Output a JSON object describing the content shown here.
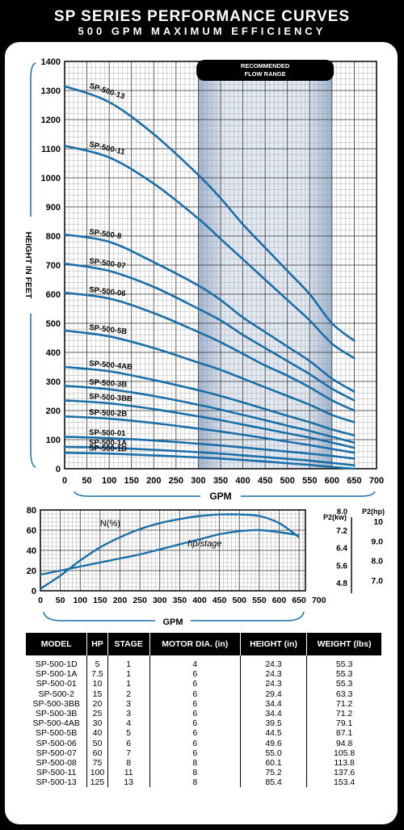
{
  "header": {
    "title": "SP SERIES PERFORMANCE CURVES",
    "subtitle": "500 GPM MAXIMUM EFFICIENCY"
  },
  "chart_data": [
    {
      "type": "line",
      "ylabel": "HEIGHT IN FEET",
      "xlabel": "GPM",
      "xlim": [
        0,
        700
      ],
      "ylim": [
        0,
        1400
      ],
      "xticks": [
        0,
        50,
        100,
        150,
        200,
        250,
        300,
        350,
        400,
        450,
        500,
        550,
        600,
        650,
        700
      ],
      "yticks": [
        0,
        100,
        200,
        300,
        400,
        500,
        600,
        700,
        800,
        900,
        1000,
        1100,
        1200,
        1300,
        1400
      ],
      "grid": true,
      "recommended_flow_range": {
        "label": "RECOMMENDED FLOW RANGE",
        "from": 300,
        "to": 600
      },
      "series": [
        {
          "name": "SP-500-13",
          "x": [
            0,
            100,
            200,
            300,
            350,
            400,
            450,
            500,
            550,
            600,
            650
          ],
          "y": [
            1315,
            1260,
            1150,
            1010,
            930,
            840,
            760,
            680,
            600,
            500,
            440
          ]
        },
        {
          "name": "SP-500-11",
          "x": [
            0,
            100,
            200,
            300,
            350,
            400,
            450,
            500,
            550,
            600,
            650
          ],
          "y": [
            1110,
            1070,
            980,
            860,
            790,
            720,
            650,
            580,
            510,
            430,
            380
          ]
        },
        {
          "name": "SP-500-8",
          "x": [
            0,
            100,
            200,
            300,
            350,
            400,
            450,
            500,
            550,
            600,
            650
          ],
          "y": [
            805,
            780,
            710,
            630,
            580,
            520,
            470,
            420,
            370,
            310,
            265
          ]
        },
        {
          "name": "SP-500-07",
          "x": [
            0,
            100,
            200,
            300,
            350,
            400,
            450,
            500,
            550,
            600,
            650
          ],
          "y": [
            705,
            680,
            625,
            550,
            510,
            460,
            415,
            370,
            325,
            275,
            235
          ]
        },
        {
          "name": "SP-500-06",
          "x": [
            0,
            100,
            200,
            300,
            350,
            400,
            450,
            500,
            550,
            600,
            650
          ],
          "y": [
            605,
            585,
            535,
            470,
            435,
            395,
            355,
            320,
            280,
            235,
            200
          ]
        },
        {
          "name": "SP-500-5B",
          "x": [
            0,
            100,
            200,
            300,
            350,
            400,
            450,
            500,
            550,
            600,
            650
          ],
          "y": [
            475,
            455,
            415,
            365,
            340,
            310,
            280,
            250,
            220,
            185,
            160
          ]
        },
        {
          "name": "SP-500-4AB",
          "x": [
            0,
            100,
            200,
            300,
            350,
            400,
            450,
            500,
            550,
            600,
            650
          ],
          "y": [
            350,
            335,
            305,
            270,
            250,
            228,
            205,
            182,
            160,
            135,
            115
          ]
        },
        {
          "name": "SP-500-3B",
          "x": [
            0,
            100,
            200,
            300,
            350,
            400,
            450,
            500,
            550,
            600,
            650
          ],
          "y": [
            285,
            273,
            250,
            220,
            203,
            185,
            167,
            148,
            130,
            110,
            90
          ]
        },
        {
          "name": "SP-500-3BB",
          "x": [
            0,
            100,
            200,
            300,
            350,
            400,
            450,
            500,
            550,
            600,
            650
          ],
          "y": [
            235,
            225,
            205,
            180,
            167,
            152,
            137,
            122,
            107,
            90,
            72
          ]
        },
        {
          "name": "SP-500-2B",
          "x": [
            0,
            100,
            200,
            300,
            350,
            400,
            450,
            500,
            550,
            600,
            650
          ],
          "y": [
            180,
            172,
            157,
            138,
            128,
            117,
            105,
            93,
            81,
            68,
            55
          ]
        },
        {
          "name": "SP-500-01",
          "x": [
            0,
            100,
            200,
            300,
            350,
            400,
            450,
            500,
            550,
            600,
            650
          ],
          "y": [
            110,
            105,
            97,
            86,
            80,
            73,
            66,
            59,
            52,
            44,
            35
          ]
        },
        {
          "name": "SP-500-1A",
          "x": [
            0,
            100,
            200,
            300,
            350,
            400,
            450,
            500,
            550,
            600,
            650
          ],
          "y": [
            75,
            72,
            65,
            57,
            52,
            46,
            40,
            34,
            28,
            20,
            12
          ]
        },
        {
          "name": "SP-500-1D",
          "x": [
            0,
            100,
            200,
            300,
            350,
            400,
            450,
            500,
            550,
            600,
            650
          ],
          "y": [
            55,
            52,
            46,
            39,
            35,
            30,
            25,
            19,
            13,
            6,
            0
          ]
        }
      ]
    },
    {
      "type": "line",
      "xlabel": "GPM",
      "xlim": [
        0,
        700
      ],
      "ylim": [
        0,
        80
      ],
      "xticks": [
        0,
        50,
        100,
        150,
        200,
        250,
        300,
        350,
        400,
        450,
        500,
        550,
        600,
        650,
        700
      ],
      "yticks": [
        0,
        20,
        40,
        60,
        80
      ],
      "right_axis_kw": {
        "label": "P2(kw)",
        "ticks": [
          "8.0",
          "7.2",
          "6.4",
          "5.6",
          "4.8"
        ]
      },
      "right_axis_hp": {
        "label": "P2(hp)",
        "ticks": [
          "10",
          "9.0",
          "8.0",
          "7.0"
        ]
      },
      "grid": true,
      "series": [
        {
          "name": "N(%)",
          "x": [
            0,
            50,
            100,
            150,
            200,
            250,
            300,
            350,
            400,
            450,
            500,
            550,
            600,
            650
          ],
          "y": [
            2,
            15,
            30,
            43,
            53,
            61,
            67,
            71,
            74,
            75.5,
            75.5,
            74,
            67,
            53
          ]
        },
        {
          "name": "hp/stage",
          "x": [
            0,
            50,
            100,
            150,
            200,
            250,
            300,
            350,
            400,
            450,
            500,
            550,
            600,
            650
          ],
          "y": [
            16,
            20,
            24,
            28,
            32,
            36,
            41,
            46,
            51,
            56,
            59,
            60,
            58,
            55
          ]
        }
      ]
    },
    {
      "type": "table",
      "columns": [
        "MODEL",
        "HP",
        "STAGE",
        "MOTOR DIA. (in)",
        "HEIGHT (in)",
        "WEIGHT (lbs)"
      ],
      "rows": [
        [
          "SP-500-1D",
          "5",
          "1",
          "4",
          "24.3",
          "55.3"
        ],
        [
          "SP-500-1A",
          "7.5",
          "1",
          "6",
          "24.3",
          "55.3"
        ],
        [
          "SP-500-01",
          "10",
          "1",
          "6",
          "24.3",
          "55.3"
        ],
        [
          "SP-500-2",
          "15",
          "2",
          "6",
          "29.4",
          "63.3"
        ],
        [
          "SP-500-3BB",
          "20",
          "3",
          "6",
          "34.4",
          "71.2"
        ],
        [
          "SP-500-3B",
          "25",
          "3",
          "6",
          "34.4",
          "71.2"
        ],
        [
          "SP-500-4AB",
          "30",
          "4",
          "6",
          "39.5",
          "79.1"
        ],
        [
          "SP-500-5B",
          "40",
          "5",
          "6",
          "44.5",
          "87.1"
        ],
        [
          "SP-500-06",
          "50",
          "6",
          "6",
          "49.6",
          "94.8"
        ],
        [
          "SP-500-07",
          "60",
          "7",
          "6",
          "55.0",
          "105.8"
        ],
        [
          "SP-500-08",
          "75",
          "8",
          "8",
          "60.1",
          "113.8"
        ],
        [
          "SP-500-11",
          "100",
          "11",
          "8",
          "75.2",
          "137.6"
        ],
        [
          "SP-500-13",
          "125",
          "13",
          "8",
          "85.4",
          "153.4"
        ]
      ]
    }
  ]
}
